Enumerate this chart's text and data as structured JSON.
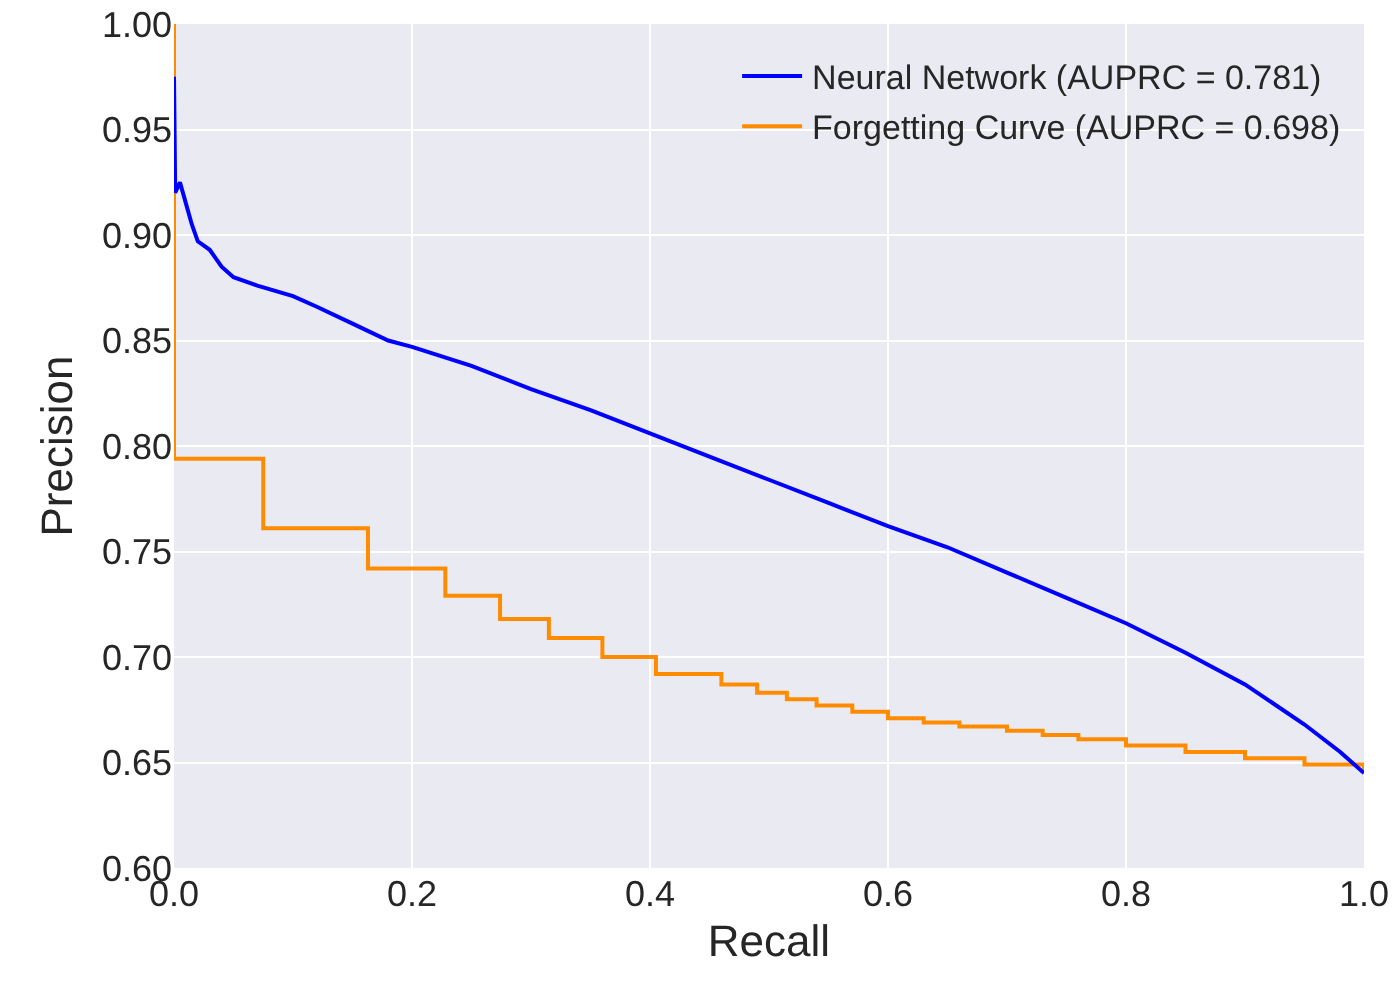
{
  "chart_data": {
    "type": "line",
    "xlabel": "Recall",
    "ylabel": "Precision",
    "xlim": [
      0,
      1
    ],
    "ylim": [
      0.6,
      1
    ],
    "xticks": [
      {
        "value": 0,
        "label": "0.0"
      },
      {
        "value": 0.2,
        "label": "0.2"
      },
      {
        "value": 0.4,
        "label": "0.4"
      },
      {
        "value": 0.6,
        "label": "0.6"
      },
      {
        "value": 0.8,
        "label": "0.8"
      },
      {
        "value": 1,
        "label": "1.0"
      }
    ],
    "yticks": [
      {
        "value": 0.6,
        "label": "0.60"
      },
      {
        "value": 0.65,
        "label": "0.65"
      },
      {
        "value": 0.7,
        "label": "0.70"
      },
      {
        "value": 0.75,
        "label": "0.75"
      },
      {
        "value": 0.8,
        "label": "0.80"
      },
      {
        "value": 0.85,
        "label": "0.85"
      },
      {
        "value": 0.9,
        "label": "0.90"
      },
      {
        "value": 0.95,
        "label": "0.95"
      },
      {
        "value": 1,
        "label": "1.00"
      }
    ],
    "grid": true,
    "legend": "top right",
    "marker": "none",
    "line_style": "solid",
    "series": [
      {
        "name": "Neural Network (AUPRC = 0.781)",
        "color": "#0000ff",
        "x": [
          0,
          0.001,
          0.005,
          0.01,
          0.015,
          0.02,
          0.03,
          0.04,
          0.05,
          0.07,
          0.1,
          0.12,
          0.15,
          0.18,
          0.2,
          0.25,
          0.3,
          0.35,
          0.4,
          0.45,
          0.5,
          0.55,
          0.6,
          0.65,
          0.7,
          0.75,
          0.8,
          0.85,
          0.9,
          0.95,
          0.98,
          1.0
        ],
        "values": [
          0.975,
          0.92,
          0.925,
          0.915,
          0.905,
          0.897,
          0.893,
          0.885,
          0.88,
          0.876,
          0.871,
          0.866,
          0.858,
          0.85,
          0.847,
          0.838,
          0.827,
          0.817,
          0.806,
          0.795,
          0.784,
          0.773,
          0.762,
          0.752,
          0.74,
          0.728,
          0.716,
          0.702,
          0.687,
          0.668,
          0.655,
          0.645
        ]
      },
      {
        "name": "Forgetting Curve (AUPRC = 0.698)",
        "color": "#ff8c00",
        "type": "step",
        "x": [
          0,
          0,
          0.075,
          0.163,
          0.228,
          0.274,
          0.315,
          0.36,
          0.405,
          0.46,
          0.49,
          0.515,
          0.54,
          0.57,
          0.6,
          0.63,
          0.66,
          0.7,
          0.73,
          0.76,
          0.8,
          0.85,
          0.9,
          0.95,
          1.0
        ],
        "values": [
          1.0,
          0.794,
          0.761,
          0.742,
          0.729,
          0.718,
          0.709,
          0.7,
          0.692,
          0.687,
          0.683,
          0.68,
          0.677,
          0.674,
          0.671,
          0.669,
          0.667,
          0.665,
          0.663,
          0.661,
          0.658,
          0.655,
          0.652,
          0.649,
          0.645
        ]
      }
    ]
  }
}
